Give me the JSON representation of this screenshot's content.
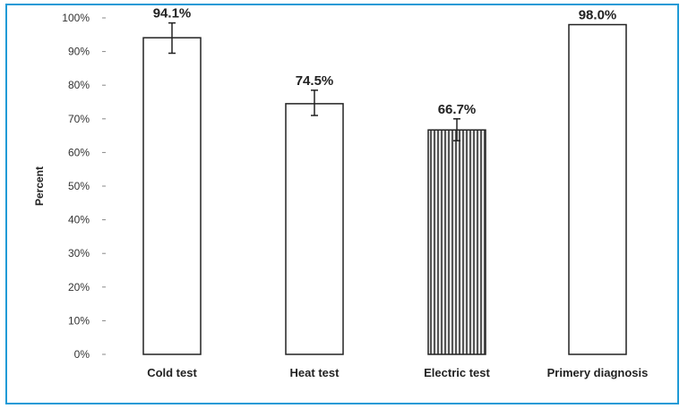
{
  "chart_data": {
    "type": "bar",
    "categories": [
      "Cold test",
      "Heat test",
      "Electric test",
      "Primery diagnosis"
    ],
    "values": [
      94.1,
      74.5,
      66.7,
      98.0
    ],
    "value_labels": [
      "94.1%",
      "74.5%",
      "66.7%",
      "98.0%"
    ],
    "error_bars": [
      {
        "low": 89.5,
        "high": 98.5
      },
      {
        "low": 71.0,
        "high": 78.5
      },
      {
        "low": 63.5,
        "high": 70.0
      },
      null
    ],
    "patterns": [
      "none",
      "none",
      "vertical-stripes",
      "none"
    ],
    "ylabel": "Percent",
    "xlabel": "",
    "ylim": [
      0,
      100
    ],
    "yticks": [
      "0%",
      "10%",
      "20%",
      "30%",
      "40%",
      "50%",
      "60%",
      "70%",
      "80%",
      "90%",
      "100%"
    ],
    "grid": false,
    "colors": {
      "bar_fill": "#ffffff",
      "bar_stroke": "#222222",
      "frame": "#1f9ad6",
      "stripe": "#555555"
    }
  }
}
